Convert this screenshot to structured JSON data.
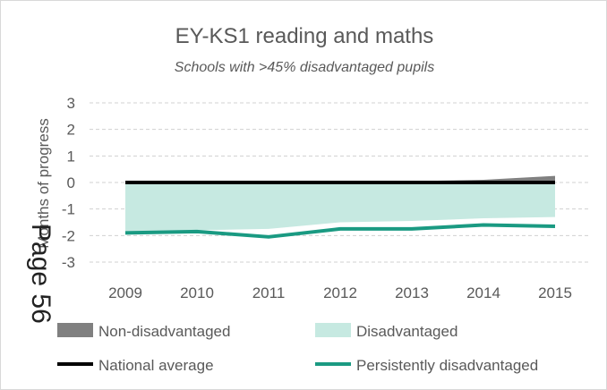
{
  "page_overlay": "Page 56",
  "chart_data": {
    "type": "area",
    "title": "EY-KS1 reading and maths",
    "subtitle": "Schools with >45% disadvantaged pupils",
    "ylabel": "Months of progress",
    "xlabel": "",
    "ylim": [
      -3,
      3
    ],
    "yticks": [
      3,
      2,
      1,
      0,
      -1,
      -2,
      -3
    ],
    "categories": [
      "2009",
      "2010",
      "2011",
      "2012",
      "2013",
      "2014",
      "2015"
    ],
    "grid": true,
    "legend_position": "bottom",
    "series": [
      {
        "name": "Non-disadvantaged",
        "kind": "area",
        "color": "#808080",
        "values": [
          0,
          0,
          0,
          0,
          0.05,
          0.1,
          0.25
        ]
      },
      {
        "name": "Disadvantaged",
        "kind": "area",
        "color": "#c6e9e1",
        "values": [
          -1.85,
          -1.8,
          -1.75,
          -1.5,
          -1.45,
          -1.35,
          -1.3
        ]
      },
      {
        "name": "National average",
        "kind": "line",
        "color": "#000000",
        "values": [
          0,
          0,
          0,
          0,
          0,
          0,
          0
        ]
      },
      {
        "name": "Persistently disadvantaged",
        "kind": "line",
        "color": "#1a9a82",
        "values": [
          -1.9,
          -1.85,
          -2.05,
          -1.75,
          -1.75,
          -1.6,
          -1.65
        ]
      }
    ]
  }
}
